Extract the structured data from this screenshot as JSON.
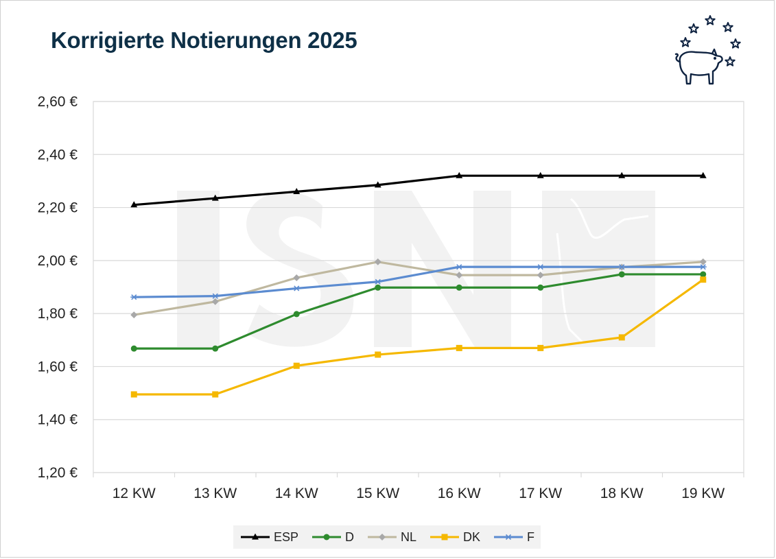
{
  "chart_data": {
    "type": "line",
    "title": "Korrigierte Notierungen 2025",
    "xlabel": "",
    "ylabel": "",
    "categories": [
      "12 KW",
      "13 KW",
      "14 KW",
      "15 KW",
      "16 KW",
      "17 KW",
      "18 KW",
      "19 KW"
    ],
    "ylim": [
      1.2,
      2.6
    ],
    "yticks": [
      1.2,
      1.4,
      1.6,
      1.8,
      2.0,
      2.2,
      2.4,
      2.6
    ],
    "ytick_labels": [
      "1,20 €",
      "1,40 €",
      "1,60 €",
      "1,80 €",
      "2,00 €",
      "2,20 €",
      "2,40 €",
      "2,60 €"
    ],
    "grid": true,
    "legend_position": "bottom",
    "series": [
      {
        "name": "ESP",
        "color": "#000000",
        "marker": "triangle",
        "values": [
          2.21,
          2.235,
          2.26,
          2.285,
          2.32,
          2.32,
          2.32,
          2.32
        ]
      },
      {
        "name": "D",
        "color": "#2e8b2e",
        "marker": "circle",
        "values": [
          1.668,
          1.668,
          1.798,
          1.898,
          1.898,
          1.898,
          1.948,
          1.948
        ]
      },
      {
        "name": "NL",
        "color": "#bfb89f",
        "marker": "diamond",
        "values": [
          1.795,
          1.845,
          1.935,
          1.995,
          1.945,
          1.945,
          1.975,
          1.995
        ]
      },
      {
        "name": "DK",
        "color": "#f5b800",
        "marker": "square",
        "values": [
          1.495,
          1.495,
          1.603,
          1.645,
          1.67,
          1.67,
          1.71,
          1.928
        ]
      },
      {
        "name": "F",
        "color": "#5b8bd0",
        "marker": "star",
        "values": [
          1.862,
          1.866,
          1.895,
          1.92,
          1.976,
          1.976,
          1.976,
          1.976
        ]
      }
    ]
  },
  "logo": {
    "name": "isn-pig-stars-logo",
    "color": "#0e2240"
  }
}
